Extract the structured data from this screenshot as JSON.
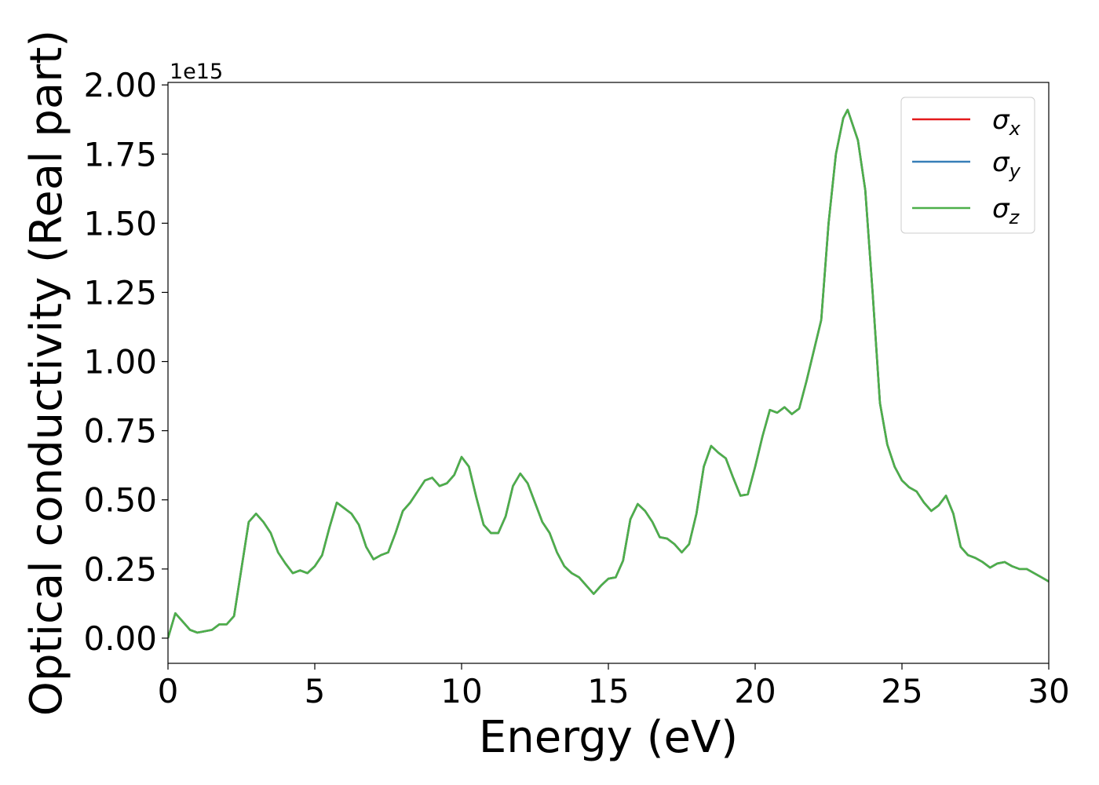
{
  "chart_data": {
    "type": "line",
    "x_label": "Energy (eV)",
    "y_label": "Optical conductivity (Real part)",
    "y_offset_label": "1e15",
    "x": [
      0,
      0.25,
      0.5,
      0.75,
      1,
      1.5,
      1.75,
      2,
      2.25,
      2.5,
      2.75,
      3,
      3.25,
      3.5,
      3.75,
      4,
      4.25,
      4.5,
      4.75,
      5,
      5.25,
      5.5,
      5.75,
      6,
      6.25,
      6.5,
      6.75,
      7,
      7.25,
      7.5,
      7.75,
      8,
      8.25,
      8.5,
      8.75,
      9,
      9.25,
      9.5,
      9.75,
      10,
      10.25,
      10.5,
      10.75,
      11,
      11.25,
      11.5,
      11.75,
      12,
      12.25,
      12.5,
      12.75,
      13,
      13.25,
      13.5,
      13.75,
      14,
      14.25,
      14.5,
      14.75,
      15,
      15.25,
      15.5,
      15.75,
      16,
      16.25,
      16.5,
      16.75,
      17,
      17.25,
      17.5,
      17.75,
      18,
      18.25,
      18.5,
      18.75,
      19,
      19.25,
      19.5,
      19.75,
      20,
      20.25,
      20.5,
      20.75,
      21,
      21.25,
      21.5,
      21.75,
      22,
      22.25,
      22.5,
      22.75,
      23,
      23.15,
      23.5,
      23.75,
      24,
      24.25,
      24.5,
      24.75,
      25,
      25.25,
      25.5,
      25.75,
      26,
      26.25,
      26.5,
      26.75,
      27,
      27.25,
      27.5,
      27.75,
      28,
      28.25,
      28.5,
      28.75,
      29,
      29.25,
      29.5,
      29.75,
      30
    ],
    "series": [
      {
        "name": "σx",
        "color": "#e41a1c",
        "values": [
          0,
          0.09,
          0.06,
          0.03,
          0.02,
          0.03,
          0.05,
          0.05,
          0.08,
          0.25,
          0.42,
          0.45,
          0.42,
          0.38,
          0.31,
          0.27,
          0.235,
          0.245,
          0.235,
          0.26,
          0.3,
          0.4,
          0.49,
          0.47,
          0.45,
          0.41,
          0.33,
          0.285,
          0.3,
          0.31,
          0.38,
          0.46,
          0.49,
          0.53,
          0.57,
          0.58,
          0.55,
          0.56,
          0.59,
          0.655,
          0.62,
          0.51,
          0.41,
          0.38,
          0.38,
          0.44,
          0.55,
          0.595,
          0.56,
          0.49,
          0.42,
          0.38,
          0.31,
          0.26,
          0.235,
          0.22,
          0.19,
          0.16,
          0.19,
          0.215,
          0.22,
          0.28,
          0.43,
          0.485,
          0.46,
          0.42,
          0.365,
          0.36,
          0.34,
          0.31,
          0.34,
          0.45,
          0.62,
          0.695,
          0.67,
          0.65,
          0.58,
          0.515,
          0.52,
          0.62,
          0.73,
          0.825,
          0.815,
          0.835,
          0.81,
          0.83,
          0.93,
          1.04,
          1.15,
          1.5,
          1.75,
          1.88,
          1.91,
          1.8,
          1.62,
          1.25,
          0.85,
          0.7,
          0.62,
          0.57,
          0.545,
          0.53,
          0.49,
          0.46,
          0.48,
          0.515,
          0.45,
          0.33,
          0.3,
          0.29,
          0.275,
          0.255,
          0.27,
          0.275,
          0.26,
          0.25,
          0.25,
          0.235,
          0.22,
          0.205
        ]
      },
      {
        "name": "σy",
        "color": "#377eb8",
        "values": [
          0,
          0.09,
          0.06,
          0.03,
          0.02,
          0.03,
          0.05,
          0.05,
          0.08,
          0.25,
          0.42,
          0.45,
          0.42,
          0.38,
          0.31,
          0.27,
          0.235,
          0.245,
          0.235,
          0.26,
          0.3,
          0.4,
          0.49,
          0.47,
          0.45,
          0.41,
          0.33,
          0.285,
          0.3,
          0.31,
          0.38,
          0.46,
          0.49,
          0.53,
          0.57,
          0.58,
          0.55,
          0.56,
          0.59,
          0.655,
          0.62,
          0.51,
          0.41,
          0.38,
          0.38,
          0.44,
          0.55,
          0.595,
          0.56,
          0.49,
          0.42,
          0.38,
          0.31,
          0.26,
          0.235,
          0.22,
          0.19,
          0.16,
          0.19,
          0.215,
          0.22,
          0.28,
          0.43,
          0.485,
          0.46,
          0.42,
          0.365,
          0.36,
          0.34,
          0.31,
          0.34,
          0.45,
          0.62,
          0.695,
          0.67,
          0.65,
          0.58,
          0.515,
          0.52,
          0.62,
          0.73,
          0.825,
          0.815,
          0.835,
          0.81,
          0.83,
          0.93,
          1.04,
          1.15,
          1.5,
          1.75,
          1.88,
          1.91,
          1.8,
          1.62,
          1.25,
          0.85,
          0.7,
          0.62,
          0.57,
          0.545,
          0.53,
          0.49,
          0.46,
          0.48,
          0.515,
          0.45,
          0.33,
          0.3,
          0.29,
          0.275,
          0.255,
          0.27,
          0.275,
          0.26,
          0.25,
          0.25,
          0.235,
          0.22,
          0.205
        ]
      },
      {
        "name": "σz",
        "color": "#4daf4a",
        "values": [
          0,
          0.09,
          0.06,
          0.03,
          0.02,
          0.03,
          0.05,
          0.05,
          0.08,
          0.25,
          0.42,
          0.45,
          0.42,
          0.38,
          0.31,
          0.27,
          0.235,
          0.245,
          0.235,
          0.26,
          0.3,
          0.4,
          0.49,
          0.47,
          0.45,
          0.41,
          0.33,
          0.285,
          0.3,
          0.31,
          0.38,
          0.46,
          0.49,
          0.53,
          0.57,
          0.58,
          0.55,
          0.56,
          0.59,
          0.655,
          0.62,
          0.51,
          0.41,
          0.38,
          0.38,
          0.44,
          0.55,
          0.595,
          0.56,
          0.49,
          0.42,
          0.38,
          0.31,
          0.26,
          0.235,
          0.22,
          0.19,
          0.16,
          0.19,
          0.215,
          0.22,
          0.28,
          0.43,
          0.485,
          0.46,
          0.42,
          0.365,
          0.36,
          0.34,
          0.31,
          0.34,
          0.45,
          0.62,
          0.695,
          0.67,
          0.65,
          0.58,
          0.515,
          0.52,
          0.62,
          0.73,
          0.825,
          0.815,
          0.835,
          0.81,
          0.83,
          0.93,
          1.04,
          1.15,
          1.5,
          1.75,
          1.88,
          1.91,
          1.8,
          1.62,
          1.25,
          0.85,
          0.7,
          0.62,
          0.57,
          0.545,
          0.53,
          0.49,
          0.46,
          0.48,
          0.515,
          0.45,
          0.33,
          0.3,
          0.29,
          0.275,
          0.255,
          0.27,
          0.275,
          0.26,
          0.25,
          0.25,
          0.235,
          0.22,
          0.205
        ]
      }
    ],
    "xlim": [
      0,
      30
    ],
    "xticks": [
      0,
      5,
      10,
      15,
      20,
      25,
      30
    ],
    "ylim": [
      -0.091,
      2.009
    ],
    "yticks": [
      {
        "value": 0,
        "label": "0.00"
      },
      {
        "value": 0.25,
        "label": "0.25"
      },
      {
        "value": 0.5,
        "label": "0.50"
      },
      {
        "value": 0.75,
        "label": "0.75"
      },
      {
        "value": 1,
        "label": "1.00"
      },
      {
        "value": 1.25,
        "label": "1.25"
      },
      {
        "value": 1.5,
        "label": "1.50"
      },
      {
        "value": 1.75,
        "label": "1.75"
      },
      {
        "value": 2,
        "label": "2.00"
      }
    ],
    "legend": "upper right",
    "grid": false
  }
}
